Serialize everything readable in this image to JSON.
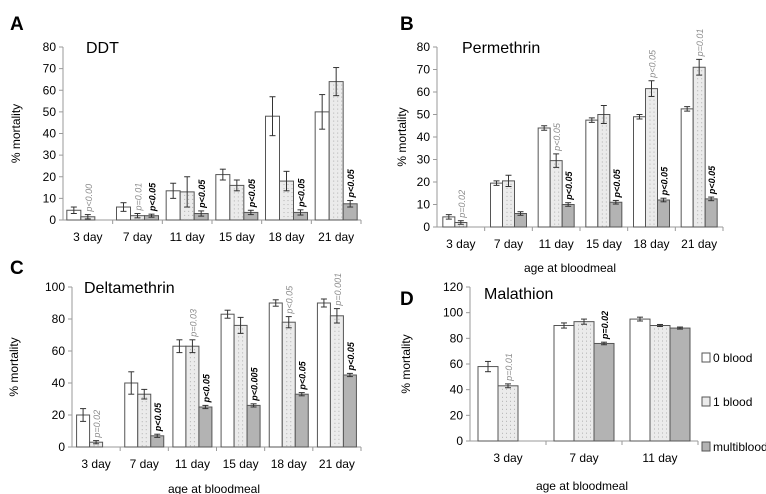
{
  "figure": {
    "colors": {
      "axis": "#9a9a9a",
      "bar_stroke": "#555555",
      "error_bar": "#333333",
      "zero_blood": "#ffffff",
      "one_blood": "#ebebeb",
      "multiblood": "#b3b3b3",
      "pval_gray": "#8c8c8c",
      "pval_black": "#000000"
    }
  },
  "chart_data": [
    {
      "panel": "A",
      "type": "bar",
      "title": "DDT",
      "xlabel": "",
      "ylabel": "% mortality",
      "ylim": [
        0,
        80
      ],
      "yticks": [
        0,
        10,
        20,
        30,
        40,
        50,
        60,
        70,
        80
      ],
      "grid": false,
      "categories": [
        "3 day",
        "7 day",
        "11 day",
        "15 day",
        "18 day",
        "21 day"
      ],
      "series": [
        {
          "key": "zero",
          "values": [
            4.5,
            6,
            13.5,
            21,
            48,
            50
          ],
          "errors": [
            1.5,
            2,
            3.5,
            2.5,
            9,
            8
          ]
        },
        {
          "key": "one",
          "values": [
            1.5,
            2,
            13,
            16,
            18,
            64
          ],
          "errors": [
            1,
            1,
            7,
            2.5,
            4.5,
            6.5
          ]
        },
        {
          "key": "multi",
          "values": [
            null,
            2,
            3,
            3.5,
            3.5,
            7.5
          ],
          "errors": [
            0,
            0.7,
            1.2,
            1,
            1.2,
            1.5
          ]
        }
      ],
      "annotations": [
        {
          "text": "p<0.00",
          "category": 0,
          "series": 1,
          "style": "gray"
        },
        {
          "text": "p=0.01",
          "category": 1,
          "series": 1,
          "style": "gray"
        },
        {
          "text": "p<0.05",
          "category": 1,
          "series": 2,
          "style": "black"
        },
        {
          "text": "p<0.05",
          "category": 2,
          "series": 2,
          "style": "black"
        },
        {
          "text": "p<0.05",
          "category": 3,
          "series": 2,
          "style": "black"
        },
        {
          "text": "p<0.05",
          "category": 4,
          "series": 2,
          "style": "black"
        },
        {
          "text": "p<0.05",
          "category": 5,
          "series": 2,
          "style": "black"
        }
      ]
    },
    {
      "panel": "B",
      "type": "bar",
      "title": "Permethrin",
      "xlabel": "age at bloodmeal",
      "ylabel": "% mortality",
      "ylim": [
        0,
        80
      ],
      "yticks": [
        0,
        10,
        20,
        30,
        40,
        50,
        60,
        70,
        80
      ],
      "grid": false,
      "categories": [
        "3 day",
        "7 day",
        "11 day",
        "15 day",
        "18 day",
        "21 day"
      ],
      "series": [
        {
          "key": "zero",
          "values": [
            4.5,
            19.5,
            44,
            47.5,
            49,
            52.5
          ],
          "errors": [
            1,
            1,
            1,
            1,
            1,
            1
          ]
        },
        {
          "key": "one",
          "values": [
            2,
            20.5,
            29.5,
            50,
            61.5,
            71
          ],
          "errors": [
            0.8,
            2.5,
            3,
            4,
            3.5,
            3.5
          ]
        },
        {
          "key": "multi",
          "values": [
            null,
            6,
            10,
            11,
            12,
            12.5
          ],
          "errors": [
            0,
            0.8,
            0.8,
            0.8,
            0.8,
            0.8
          ]
        }
      ],
      "annotations": [
        {
          "text": "p=0.02",
          "category": 0,
          "series": 1,
          "style": "gray"
        },
        {
          "text": "p<0.05",
          "category": 2,
          "series": 1,
          "style": "gray"
        },
        {
          "text": "p<0.05",
          "category": 2,
          "series": 2,
          "style": "black"
        },
        {
          "text": "p<0.05",
          "category": 3,
          "series": 2,
          "style": "black"
        },
        {
          "text": "p<0.05",
          "category": 4,
          "series": 1,
          "style": "gray"
        },
        {
          "text": "p<0.05",
          "category": 4,
          "series": 2,
          "style": "black"
        },
        {
          "text": "p=0.01",
          "category": 5,
          "series": 1,
          "style": "gray"
        },
        {
          "text": "p<0.05",
          "category": 5,
          "series": 2,
          "style": "black"
        }
      ]
    },
    {
      "panel": "C",
      "type": "bar",
      "title": "Deltamethrin",
      "xlabel": "age at bloodmeal",
      "ylabel": "% mortality",
      "ylim": [
        0,
        100
      ],
      "yticks": [
        0,
        20,
        40,
        60,
        80,
        100
      ],
      "grid": false,
      "categories": [
        "3 day",
        "7 day",
        "11 day",
        "15 day",
        "18 day",
        "21 day"
      ],
      "series": [
        {
          "key": "zero",
          "values": [
            20,
            40,
            63,
            83,
            90,
            90
          ],
          "errors": [
            4,
            7,
            4,
            2.5,
            2,
            2.5
          ]
        },
        {
          "key": "one",
          "values": [
            3,
            33,
            63,
            76,
            78,
            82
          ],
          "errors": [
            1,
            3,
            4,
            5,
            3.5,
            4.5
          ]
        },
        {
          "key": "multi",
          "values": [
            null,
            7,
            25,
            26,
            33,
            45
          ],
          "errors": [
            0,
            1,
            1,
            1,
            1,
            1
          ]
        }
      ],
      "annotations": [
        {
          "text": "p=0.02",
          "category": 0,
          "series": 1,
          "style": "gray"
        },
        {
          "text": "p<0.05",
          "category": 1,
          "series": 2,
          "style": "black"
        },
        {
          "text": "p=0.03",
          "category": 2,
          "series": 1,
          "style": "gray"
        },
        {
          "text": "p<0.05",
          "category": 2,
          "series": 2,
          "style": "black"
        },
        {
          "text": "p<0.005",
          "category": 3,
          "series": 2,
          "style": "black"
        },
        {
          "text": "p<0.05",
          "category": 4,
          "series": 1,
          "style": "gray"
        },
        {
          "text": "p<0.05",
          "category": 4,
          "series": 2,
          "style": "black"
        },
        {
          "text": "p=0.001",
          "category": 5,
          "series": 1,
          "style": "gray"
        },
        {
          "text": "p<0.05",
          "category": 5,
          "series": 2,
          "style": "black"
        }
      ]
    },
    {
      "panel": "D",
      "type": "bar",
      "title": "Malathion",
      "xlabel": "age at bloodmeal",
      "ylabel": "% mortality",
      "ylim": [
        0,
        120
      ],
      "yticks": [
        0,
        20,
        40,
        60,
        80,
        100,
        120
      ],
      "grid": false,
      "categories": [
        "3 day",
        "7 day",
        "11 day"
      ],
      "legend_position": "right",
      "series": [
        {
          "key": "zero",
          "name": "0 blood",
          "values": [
            58,
            90,
            95
          ],
          "errors": [
            4,
            2,
            1.5
          ]
        },
        {
          "key": "one",
          "name": "1 blood",
          "values": [
            43,
            93,
            90
          ],
          "errors": [
            1.5,
            2,
            0.8
          ]
        },
        {
          "key": "multi",
          "name": "multiblood",
          "values": [
            null,
            76,
            88
          ],
          "errors": [
            0,
            1,
            0.8
          ]
        }
      ],
      "annotations": [
        {
          "text": "p=0.01",
          "category": 0,
          "series": 1,
          "style": "gray"
        },
        {
          "text": "p=0.02",
          "category": 1,
          "series": 2,
          "style": "black"
        }
      ]
    }
  ]
}
